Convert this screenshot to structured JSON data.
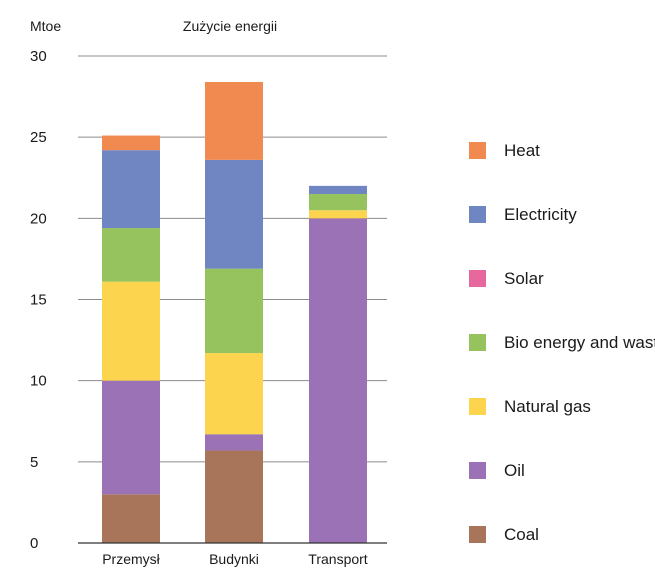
{
  "chart_data": {
    "type": "bar",
    "stacked": true,
    "title": "Zużycie energii",
    "ylabel": "Mtoe",
    "xlabel": "",
    "ylim": [
      0,
      30
    ],
    "yticks": [
      0,
      5,
      10,
      15,
      20,
      25,
      30
    ],
    "grid": true,
    "legend_position": "right",
    "categories": [
      "Przemysł",
      "Budynki",
      "Transport"
    ],
    "series": [
      {
        "name": "Coal",
        "color": "#a8755a",
        "values": [
          3.0,
          5.7,
          0
        ]
      },
      {
        "name": "Oil",
        "color": "#9b72b5",
        "values": [
          7.0,
          1.0,
          20.0
        ]
      },
      {
        "name": "Natural gas",
        "color": "#fdd44e",
        "values": [
          6.1,
          5.0,
          0.5
        ]
      },
      {
        "name": "Bio energy and waste",
        "color": "#96c35d",
        "values": [
          3.3,
          5.2,
          1.0
        ]
      },
      {
        "name": "Solar",
        "color": "#e6689c",
        "values": [
          0,
          0,
          0
        ]
      },
      {
        "name": "Electricity",
        "color": "#7086c3",
        "values": [
          4.8,
          6.7,
          0.5
        ]
      },
      {
        "name": "Heat",
        "color": "#f08a51",
        "values": [
          0.9,
          4.8,
          0
        ]
      }
    ],
    "legend_order": [
      "Heat",
      "Electricity",
      "Solar",
      "Bio energy and waste",
      "Natural gas",
      "Oil",
      "Coal"
    ]
  }
}
